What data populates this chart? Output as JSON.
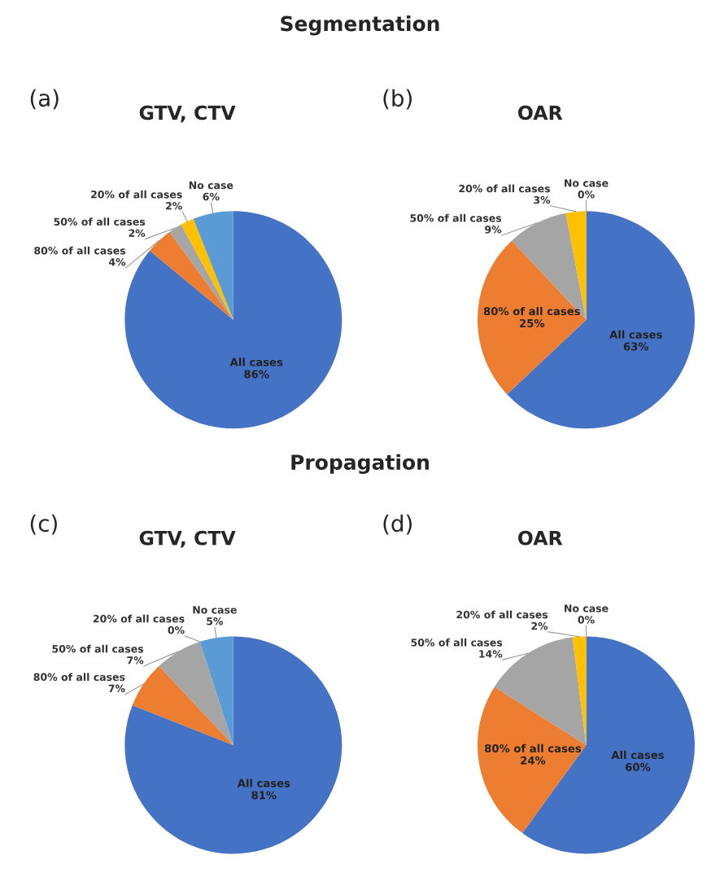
{
  "chart_data": [
    {
      "type": "pie",
      "title": "GTV, CTV",
      "annotations": [
        "(a)",
        "Segmentation"
      ],
      "categories": [
        "All cases",
        "80% of all cases",
        "50% of all cases",
        "20% of all cases",
        "No case"
      ],
      "values": [
        86,
        4,
        2,
        2,
        6
      ],
      "value_labels": [
        "86%",
        "4%",
        "2%",
        "2%",
        "6%"
      ],
      "colors": [
        "#4472c4",
        "#ed7d31",
        "#a5a5a5",
        "#ffc000",
        "#5b9bd5"
      ]
    },
    {
      "type": "pie",
      "title": "OAR",
      "annotations": [
        "(b)"
      ],
      "categories": [
        "All cases",
        "80% of all cases",
        "50% of all cases",
        "20% of all cases",
        "No case"
      ],
      "values": [
        63,
        25,
        9,
        3,
        0
      ],
      "value_labels": [
        "63%",
        "25%",
        "9%",
        "3%",
        "0%"
      ],
      "colors": [
        "#4472c4",
        "#ed7d31",
        "#a5a5a5",
        "#ffc000",
        "#5b9bd5"
      ]
    },
    {
      "type": "pie",
      "title": "GTV, CTV",
      "annotations": [
        "(c)",
        "Propagation"
      ],
      "categories": [
        "All cases",
        "80% of all cases",
        "50% of all cases",
        "20% of all cases",
        "No case"
      ],
      "values": [
        81,
        7,
        7,
        0,
        5
      ],
      "value_labels": [
        "81%",
        "7%",
        "7%",
        "0%",
        "5%"
      ],
      "colors": [
        "#4472c4",
        "#ed7d31",
        "#a5a5a5",
        "#ffc000",
        "#5b9bd5"
      ]
    },
    {
      "type": "pie",
      "title": "OAR",
      "annotations": [
        "(d)"
      ],
      "categories": [
        "All cases",
        "80% of all cases",
        "50% of all cases",
        "20% of all cases",
        "No case"
      ],
      "values": [
        60,
        24,
        14,
        2,
        0
      ],
      "value_labels": [
        "60%",
        "24%",
        "14%",
        "2%",
        "0%"
      ],
      "colors": [
        "#4472c4",
        "#ed7d31",
        "#a5a5a5",
        "#ffc000",
        "#5b9bd5"
      ]
    }
  ]
}
